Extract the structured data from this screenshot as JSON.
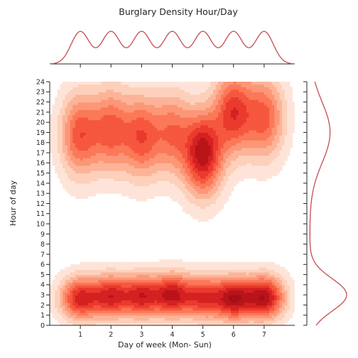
{
  "chart_data": {
    "type": "heatmap",
    "subtype": "kde-joint-density",
    "title": "Burglary Density Hour/Day",
    "xlabel": "Day of week (Mon- Sun)",
    "ylabel": "Hour of day",
    "x_ticks": [
      1,
      2,
      3,
      4,
      5,
      6,
      7
    ],
    "y_ticks": [
      0,
      1,
      2,
      3,
      4,
      5,
      6,
      7,
      8,
      9,
      10,
      11,
      12,
      13,
      14,
      15,
      16,
      17,
      18,
      19,
      20,
      21,
      22,
      23,
      24
    ],
    "xlim": [
      0,
      8
    ],
    "ylim": [
      0,
      24
    ],
    "colormap": "Reds",
    "marginal_color": "#c44e52",
    "density_peaks": [
      {
        "day": 1,
        "hour": 2.7,
        "weight": 1.0
      },
      {
        "day": 2,
        "hour": 2.9,
        "weight": 1.0
      },
      {
        "day": 3,
        "hour": 2.9,
        "weight": 1.0
      },
      {
        "day": 4,
        "hour": 3.0,
        "weight": 1.1
      },
      {
        "day": 5,
        "hour": 2.8,
        "weight": 0.9
      },
      {
        "day": 6,
        "hour": 2.7,
        "weight": 1.2
      },
      {
        "day": 7,
        "hour": 2.8,
        "weight": 1.2
      },
      {
        "day": 1,
        "hour": 18.8,
        "weight": 0.75
      },
      {
        "day": 2,
        "hour": 19.3,
        "weight": 0.7
      },
      {
        "day": 3,
        "hour": 18.6,
        "weight": 0.75
      },
      {
        "day": 4,
        "hour": 19.0,
        "weight": 0.6
      },
      {
        "day": 5,
        "hour": 17.0,
        "weight": 1.2
      },
      {
        "day": 6,
        "hour": 21.0,
        "weight": 0.9
      },
      {
        "day": 7,
        "hour": 20.5,
        "weight": 0.7
      }
    ],
    "marginal_x_peaks": [
      1,
      2,
      3,
      4,
      5,
      6,
      7
    ],
    "marginal_y_peaks": [
      3,
      19
    ]
  }
}
